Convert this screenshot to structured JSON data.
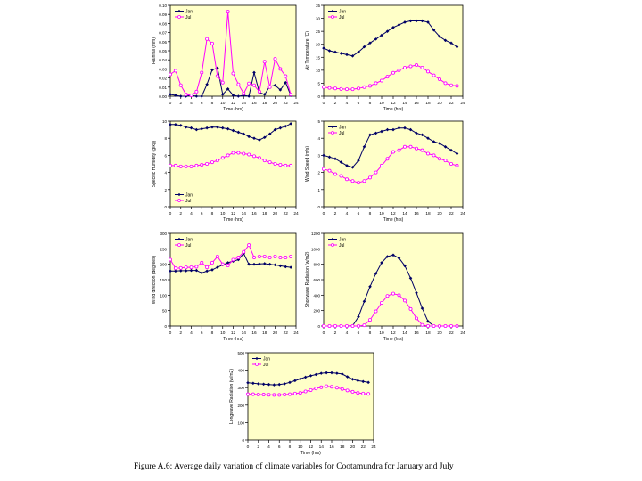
{
  "caption": "Figure A.6: Average daily variation of climate variables for Cootamundra for January and July",
  "legend": {
    "jan": "Jan",
    "jul": "Jul"
  },
  "colors": {
    "plot_bg": "#FFFFC8",
    "jan": "#000066",
    "jul": "#FF00FF"
  },
  "chart_data": [
    {
      "id": "rainfall",
      "type": "line",
      "title": "",
      "xlabel": "Time (hrs)",
      "ylabel": "Rainfall (mm)",
      "xlim": [
        0,
        24
      ],
      "ylim": [
        0,
        0.1
      ],
      "xticks": [
        0,
        2,
        4,
        6,
        8,
        10,
        12,
        14,
        16,
        18,
        20,
        22,
        24
      ],
      "yticks": [
        0,
        0.01,
        0.02,
        0.03,
        0.04,
        0.05,
        0.06,
        0.07,
        0.08,
        0.09,
        0.1
      ],
      "ytick_labels": [
        "0.00",
        "0.01",
        "0.02",
        "0.03",
        "0.04",
        "0.05",
        "0.06",
        "0.07",
        "0.08",
        "0.09",
        "0.10"
      ],
      "legend_pos": "top-left",
      "x": [
        0,
        1,
        2,
        3,
        4,
        5,
        6,
        7,
        8,
        9,
        10,
        11,
        12,
        13,
        14,
        15,
        16,
        17,
        18,
        19,
        20,
        21,
        22,
        23
      ],
      "series": [
        {
          "name": "Jan",
          "values": [
            0.002,
            0.001,
            0,
            0,
            0.001,
            0,
            0,
            0.013,
            0.029,
            0.031,
            0.002,
            0.008,
            0.001,
            0,
            0.001,
            0,
            0.026,
            0.004,
            0.002,
            0.011,
            0.012,
            0.007,
            0.015,
            0.001
          ]
        },
        {
          "name": "Jul",
          "values": [
            0.024,
            0.028,
            0.012,
            0.002,
            0.001,
            0.005,
            0.026,
            0.063,
            0.058,
            0.022,
            0.015,
            0.093,
            0.025,
            0.013,
            0.003,
            0.014,
            0.012,
            0.005,
            0.038,
            0.01,
            0.041,
            0.03,
            0.022,
            0.002
          ]
        }
      ]
    },
    {
      "id": "air_temperature",
      "type": "line",
      "title": "",
      "xlabel": "Time (hrs)",
      "ylabel": "Air Temperature (C)",
      "xlim": [
        0,
        24
      ],
      "ylim": [
        0,
        35
      ],
      "xticks": [
        0,
        2,
        4,
        6,
        8,
        10,
        12,
        14,
        16,
        18,
        20,
        22,
        24
      ],
      "yticks": [
        0,
        5,
        10,
        15,
        20,
        25,
        30,
        35
      ],
      "ytick_labels": [
        "0",
        "5",
        "10",
        "15",
        "20",
        "25",
        "30",
        "35"
      ],
      "legend_pos": "top-left",
      "x": [
        0,
        1,
        2,
        3,
        4,
        5,
        6,
        7,
        8,
        9,
        10,
        11,
        12,
        13,
        14,
        15,
        16,
        17,
        18,
        19,
        20,
        21,
        22,
        23
      ],
      "series": [
        {
          "name": "Jan",
          "values": [
            18.5,
            17.5,
            17,
            16.5,
            16,
            15.5,
            17,
            19,
            20.5,
            22,
            23.5,
            25,
            26.5,
            27.5,
            28.5,
            29,
            29,
            29,
            28.5,
            25.5,
            23,
            21.5,
            20.5,
            19
          ]
        },
        {
          "name": "Jul",
          "values": [
            3.5,
            3.2,
            3,
            2.8,
            2.7,
            2.7,
            3,
            3.5,
            4,
            5,
            6,
            7.5,
            9,
            10,
            11,
            11.5,
            12,
            11,
            9.5,
            8,
            6.5,
            5,
            4.2,
            4
          ]
        }
      ]
    },
    {
      "id": "specific_humidity",
      "type": "line",
      "title": "",
      "xlabel": "Time (hrs)",
      "ylabel": "Specific Humidity (g/kg)",
      "xlim": [
        0,
        24
      ],
      "ylim": [
        0,
        10
      ],
      "xticks": [
        0,
        2,
        4,
        6,
        8,
        10,
        12,
        14,
        16,
        18,
        20,
        22,
        24
      ],
      "yticks": [
        0,
        2,
        4,
        6,
        8,
        10
      ],
      "ytick_labels": [
        "0",
        "2",
        "4",
        "6",
        "8",
        "10"
      ],
      "legend_pos": "bottom-left",
      "x": [
        0,
        1,
        2,
        3,
        4,
        5,
        6,
        7,
        8,
        9,
        10,
        11,
        12,
        13,
        14,
        15,
        16,
        17,
        18,
        19,
        20,
        21,
        22,
        23
      ],
      "series": [
        {
          "name": "Jan",
          "values": [
            9.6,
            9.6,
            9.5,
            9.3,
            9.2,
            9.0,
            9.1,
            9.2,
            9.3,
            9.3,
            9.2,
            9.1,
            8.9,
            8.7,
            8.5,
            8.2,
            8.0,
            7.8,
            8.1,
            8.5,
            9.0,
            9.2,
            9.4,
            9.7
          ]
        },
        {
          "name": "Jul",
          "values": [
            4.8,
            4.8,
            4.7,
            4.7,
            4.7,
            4.8,
            4.9,
            5.0,
            5.2,
            5.4,
            5.7,
            6.0,
            6.3,
            6.3,
            6.2,
            6.1,
            5.9,
            5.7,
            5.4,
            5.2,
            5.0,
            4.9,
            4.8,
            4.8
          ]
        }
      ]
    },
    {
      "id": "wind_speed",
      "type": "line",
      "title": "",
      "xlabel": "Time (hrs)",
      "ylabel": "Wind Speed (m/s)",
      "xlim": [
        0,
        24
      ],
      "ylim": [
        0,
        5
      ],
      "xticks": [
        0,
        2,
        4,
        6,
        8,
        10,
        12,
        14,
        16,
        18,
        20,
        22,
        24
      ],
      "yticks": [
        0,
        1,
        2,
        3,
        4,
        5
      ],
      "ytick_labels": [
        "0",
        "1",
        "2",
        "3",
        "4",
        "5"
      ],
      "legend_pos": "top-left",
      "x": [
        0,
        1,
        2,
        3,
        4,
        5,
        6,
        7,
        8,
        9,
        10,
        11,
        12,
        13,
        14,
        15,
        16,
        17,
        18,
        19,
        20,
        21,
        22,
        23
      ],
      "series": [
        {
          "name": "Jan",
          "values": [
            3.0,
            2.9,
            2.8,
            2.6,
            2.4,
            2.3,
            2.7,
            3.5,
            4.2,
            4.3,
            4.4,
            4.5,
            4.5,
            4.6,
            4.6,
            4.5,
            4.3,
            4.2,
            4.0,
            3.8,
            3.7,
            3.5,
            3.3,
            3.1
          ]
        },
        {
          "name": "Jul",
          "values": [
            2.2,
            2.1,
            1.9,
            1.8,
            1.6,
            1.5,
            1.4,
            1.5,
            1.7,
            2.0,
            2.4,
            2.8,
            3.2,
            3.3,
            3.5,
            3.5,
            3.4,
            3.3,
            3.1,
            3.0,
            2.8,
            2.7,
            2.5,
            2.4
          ]
        }
      ]
    },
    {
      "id": "wind_direction",
      "type": "line",
      "title": "",
      "xlabel": "Time (hrs)",
      "ylabel": "Wind direction (degrees)",
      "xlim": [
        0,
        24
      ],
      "ylim": [
        0,
        300
      ],
      "xticks": [
        0,
        2,
        4,
        6,
        8,
        10,
        12,
        14,
        16,
        18,
        20,
        22,
        24
      ],
      "yticks": [
        0,
        50,
        100,
        150,
        200,
        250,
        300
      ],
      "ytick_labels": [
        "0",
        "50",
        "100",
        "150",
        "200",
        "250",
        "300"
      ],
      "legend_pos": "top-left",
      "x": [
        0,
        1,
        2,
        3,
        4,
        5,
        6,
        7,
        8,
        9,
        10,
        11,
        12,
        13,
        14,
        15,
        16,
        17,
        18,
        19,
        20,
        21,
        22,
        23
      ],
      "series": [
        {
          "name": "Jan",
          "values": [
            178,
            178,
            179,
            179,
            180,
            180,
            172,
            178,
            182,
            190,
            198,
            205,
            210,
            215,
            235,
            200,
            200,
            201,
            202,
            200,
            198,
            195,
            192,
            190
          ]
        },
        {
          "name": "Jul",
          "values": [
            215,
            187,
            188,
            190,
            190,
            192,
            205,
            190,
            205,
            225,
            200,
            196,
            215,
            222,
            240,
            262,
            222,
            225,
            225,
            222,
            225,
            222,
            222,
            225
          ]
        }
      ]
    },
    {
      "id": "shortwave_radiation",
      "type": "line",
      "title": "",
      "xlabel": "Time (hrs)",
      "ylabel": "Shortwave Radiation (w/m2)",
      "xlim": [
        0,
        24
      ],
      "ylim": [
        0,
        1200
      ],
      "xticks": [
        0,
        2,
        4,
        6,
        8,
        10,
        12,
        14,
        16,
        18,
        20,
        22,
        24
      ],
      "yticks": [
        0,
        200,
        400,
        600,
        800,
        1000,
        1200
      ],
      "ytick_labels": [
        "0",
        "200",
        "400",
        "600",
        "800",
        "1000",
        "1200"
      ],
      "legend_pos": "top-left",
      "x": [
        0,
        1,
        2,
        3,
        4,
        5,
        6,
        7,
        8,
        9,
        10,
        11,
        12,
        13,
        14,
        15,
        16,
        17,
        18,
        19,
        20,
        21,
        22,
        23
      ],
      "series": [
        {
          "name": "Jan",
          "values": [
            0,
            0,
            0,
            0,
            0,
            5,
            120,
            320,
            510,
            680,
            820,
            900,
            920,
            880,
            780,
            620,
            430,
            230,
            60,
            0,
            0,
            0,
            0,
            0
          ]
        },
        {
          "name": "Jul",
          "values": [
            0,
            0,
            0,
            0,
            0,
            0,
            0,
            10,
            80,
            190,
            300,
            390,
            420,
            400,
            330,
            220,
            100,
            15,
            0,
            0,
            0,
            0,
            0,
            0
          ]
        }
      ]
    },
    {
      "id": "longwave_radiation",
      "type": "line",
      "title": "",
      "xlabel": "Time (hrs)",
      "ylabel": "Longwave Radiation (w/m2)",
      "xlim": [
        0,
        24
      ],
      "ylim": [
        0,
        500
      ],
      "xticks": [
        0,
        2,
        4,
        6,
        8,
        10,
        12,
        14,
        16,
        18,
        20,
        22,
        24
      ],
      "yticks": [
        0,
        100,
        200,
        300,
        400,
        500
      ],
      "ytick_labels": [
        "0",
        "100",
        "200",
        "300",
        "400",
        "500"
      ],
      "legend_pos": "top-left",
      "x": [
        0,
        1,
        2,
        3,
        4,
        5,
        6,
        7,
        8,
        9,
        10,
        11,
        12,
        13,
        14,
        15,
        16,
        17,
        18,
        19,
        20,
        21,
        22,
        23
      ],
      "series": [
        {
          "name": "Jan",
          "values": [
            328,
            325,
            322,
            320,
            318,
            316,
            318,
            322,
            330,
            340,
            350,
            360,
            368,
            375,
            382,
            385,
            385,
            382,
            378,
            362,
            348,
            340,
            335,
            330
          ]
        },
        {
          "name": "Jul",
          "values": [
            262,
            262,
            260,
            260,
            259,
            258,
            258,
            260,
            262,
            266,
            270,
            278,
            286,
            295,
            302,
            308,
            305,
            300,
            292,
            284,
            276,
            270,
            266,
            264
          ]
        }
      ]
    }
  ]
}
